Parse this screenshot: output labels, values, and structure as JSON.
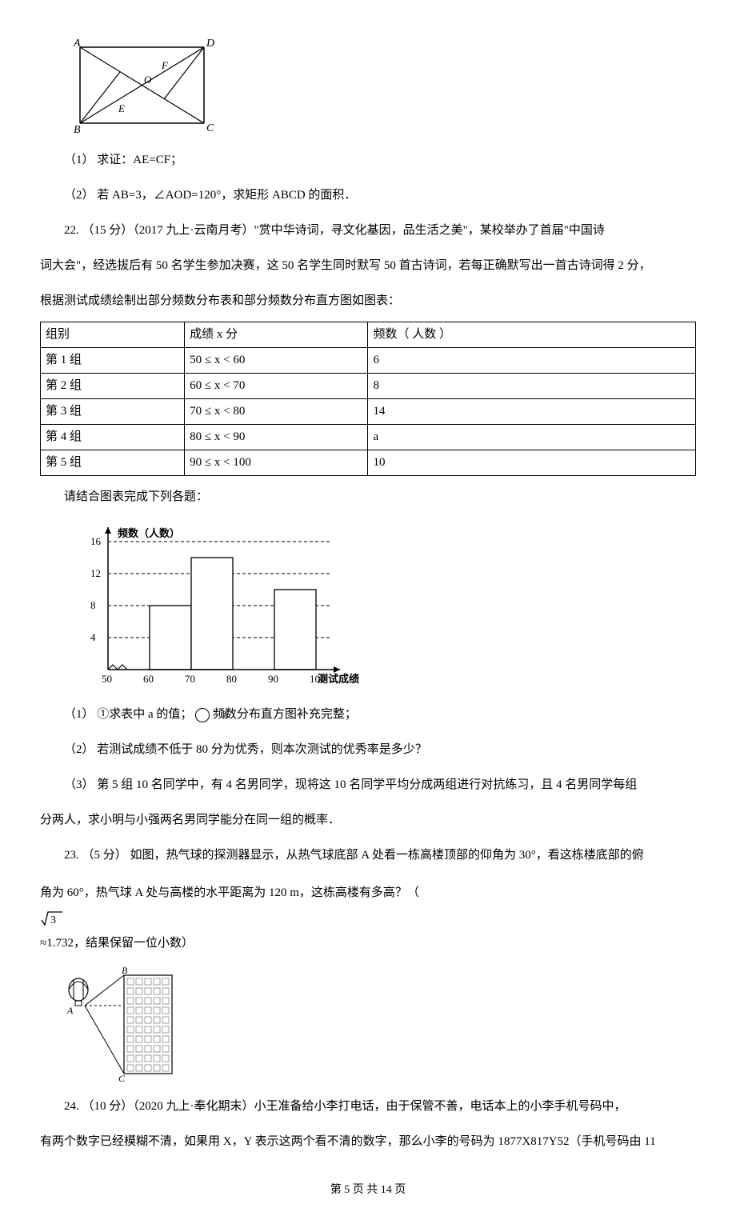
{
  "geom_fig": {
    "stroke": "#000000",
    "labels": {
      "A": "A",
      "B": "B",
      "C": "C",
      "D": "D",
      "E": "E",
      "F": "F",
      "O": "O"
    },
    "label_font_size": 14,
    "label_font_style": "italic"
  },
  "q21": {
    "p1": "（1） 求证：AE=CF；",
    "p2": "（2） 若 AB=3，∠AOD=120°，求矩形 ABCD 的面积．"
  },
  "q22": {
    "intro_a": "22. （15 分）（2017 九上·云南月考）\"赏中华诗词，寻文化基因，品生活之美\"，某校举办了首届\"中国诗",
    "intro_b": "词大会\"，经选拔后有 50 名学生参加决赛，这 50 名学生同时默写 50 首古诗词，若每正确默写出一首古诗词得 2 分，",
    "intro_c": "根据测试成绩绘制出部分频数分布表和部分频数分布直方图如图表：",
    "table": {
      "columns": [
        "组别",
        "成绩 x 分",
        "频数（ 人数 ）"
      ],
      "rows": [
        [
          "第 1 组",
          "50 ≤ x < 60",
          "6"
        ],
        [
          "第 2 组",
          "60 ≤ x < 70",
          "8"
        ],
        [
          "第 3 组",
          "70 ≤ x < 80",
          "14"
        ],
        [
          "第 4 组",
          "80 ≤ x < 90",
          "a"
        ],
        [
          "第 5 组",
          "90 ≤ x < 100",
          "10"
        ]
      ],
      "border_color": "#000000",
      "font_size": 15
    },
    "after_table": "请结合图表完成下列各题：",
    "histogram": {
      "type": "histogram",
      "y_label": "频数（人数）",
      "x_label": "测试成绩",
      "y_ticks": [
        4,
        8,
        12,
        16
      ],
      "x_ticks": [
        50,
        60,
        70,
        80,
        90,
        100
      ],
      "bars": [
        {
          "x0": 50,
          "x1": 60,
          "h": 6,
          "visible": false
        },
        {
          "x0": 60,
          "x1": 70,
          "h": 8,
          "visible": true
        },
        {
          "x0": 70,
          "x1": 80,
          "h": 14,
          "visible": true
        },
        {
          "x0": 80,
          "x1": 90,
          "h": 0,
          "visible": false
        },
        {
          "x0": 90,
          "x1": 100,
          "h": 10,
          "visible": true
        }
      ],
      "colors": {
        "axis": "#000000",
        "bar_fill": "#ffffff",
        "bar_stroke": "#000000",
        "grid": "#000000"
      },
      "font_size": 13,
      "dash": "4,3",
      "y_max": 16,
      "axis_arrow": true
    },
    "sub1_a": "（1） ①求表中 a 的值；",
    "sub1_b_circled": "②",
    "sub1_b": " 频数分布直方图补充完整；",
    "sub2": "（2） 若测试成绩不低于 80 分为优秀，则本次测试的优秀率是多少？",
    "sub3_a": "（3） 第 5 组 10 名同学中，有 4 名男同学，现将这 10 名同学平均分成两组进行对抗练习，且 4 名男同学每组",
    "sub3_b": "分两人，求小明与小强两名男同学能分在同一组的概率．"
  },
  "q23": {
    "line_a": "23. （5 分） 如图，热气球的探测器显示，从热气球底部 A 处看一栋高楼顶部的仰角为 30°，看这栋楼底部的俯",
    "line_b_pre": "角为 60°，热气球 A 处与高楼的水平距离为 120 m，这栋高楼有多高？（　",
    "line_b_sqrt": "√3",
    "line_b_post": " ≈1.732，结果保留一位小数）",
    "fig": {
      "labels": {
        "A": "A",
        "B": "B",
        "C": "C"
      },
      "colors": {
        "stroke": "#000000",
        "fill": "#ffffff",
        "window_stroke": "#666666"
      },
      "label_font_size": 12,
      "label_font_style": "italic"
    }
  },
  "q24": {
    "line_a": "24. （10 分）（2020 九上·奉化期末）小王准备给小李打电话，由于保管不善，电话本上的小李手机号码中，",
    "line_b": "有两个数字已经模糊不清，如果用 X，Y 表示这两个看不清的数字，那么小李的号码为 1877X817Y52（手机号码由 11"
  },
  "footer": {
    "text_a": "第 ",
    "cur": "5",
    "text_b": " 页 共 ",
    "total": "14",
    "text_c": " 页"
  }
}
